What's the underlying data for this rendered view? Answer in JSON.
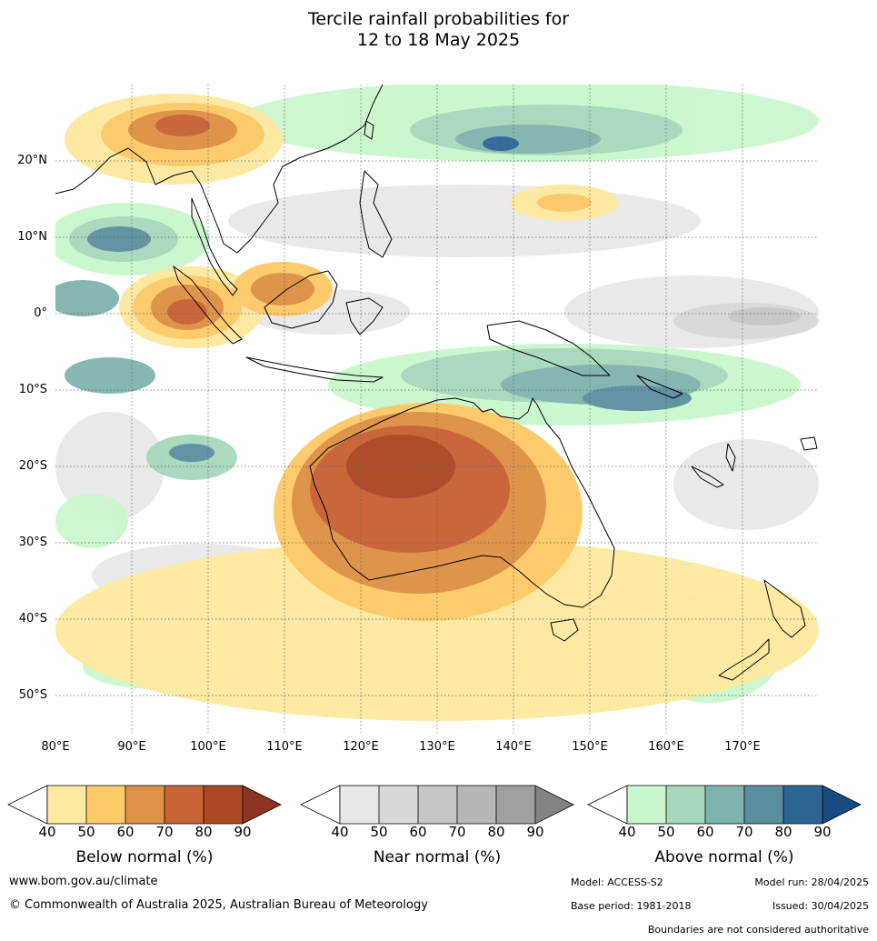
{
  "title": {
    "line1": "Tercile rainfall probabilities for",
    "line2": "12 to 18 May 2025"
  },
  "map": {
    "lat_labels": [
      "20°N",
      "10°N",
      "0°",
      "10°S",
      "20°S",
      "30°S",
      "40°S",
      "50°S"
    ],
    "lon_labels": [
      "80°E",
      "90°E",
      "100°E",
      "110°E",
      "120°E",
      "130°E",
      "140°E",
      "150°E",
      "160°E",
      "170°E"
    ],
    "lon_range": [
      80,
      180
    ],
    "lat_range": [
      -55,
      30
    ],
    "grid": true
  },
  "legends": [
    {
      "title": "Below normal (%)",
      "ticks": [
        "40",
        "50",
        "60",
        "70",
        "80",
        "90"
      ],
      "colors": [
        "#ffffff",
        "#fee9a0",
        "#fdca68",
        "#de9147",
        "#c86335",
        "#ad4726",
        "#8e3321"
      ]
    },
    {
      "title": "Near normal (%)",
      "ticks": [
        "40",
        "50",
        "60",
        "70",
        "80",
        "90"
      ],
      "colors": [
        "#ffffff",
        "#e8e8e8",
        "#d8d8d8",
        "#c6c6c6",
        "#b6b6b6",
        "#a0a0a0",
        "#838383"
      ]
    },
    {
      "title": "Above normal (%)",
      "ticks": [
        "40",
        "50",
        "60",
        "70",
        "80",
        "90"
      ],
      "colors": [
        "#ffffff",
        "#c9f7cd",
        "#a6d8bb",
        "#7fb3ad",
        "#5a8fa0",
        "#2d6593",
        "#184a84"
      ]
    }
  ],
  "footer": {
    "website": "www.bom.gov.au/climate",
    "copyright": "© Commonwealth of Australia 2025, Australian Bureau of Meteorology",
    "model": "Model: ACCESS-S2",
    "model_run": "Model run: 28/04/2025",
    "base_period": "Base period: 1981-2018",
    "issued": "Issued: 30/04/2025",
    "boundaries_note": "Boundaries are not considered authoritative"
  }
}
